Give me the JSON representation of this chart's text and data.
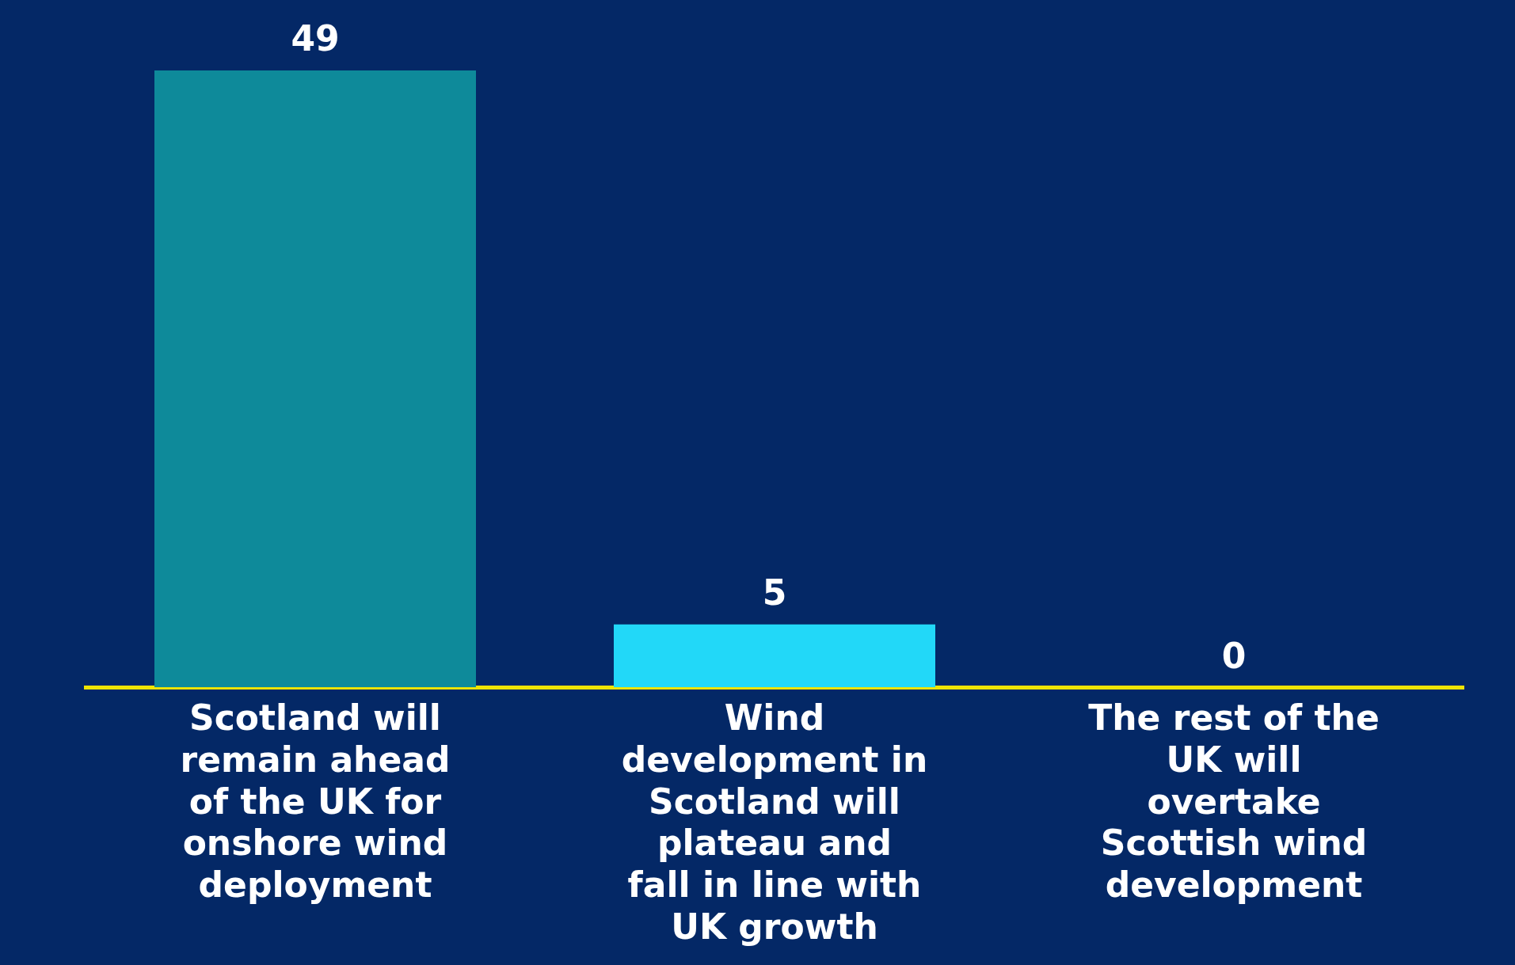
{
  "chart_data": {
    "type": "bar",
    "categories": [
      "Scotland will remain ahead of the UK for onshore wind deployment",
      "Wind development in Scotland will plateau and fall in line with UK growth",
      "The rest of the UK will overtake Scottish wind development"
    ],
    "values": [
      49,
      5,
      0
    ],
    "colors": [
      "#0e8a9a",
      "#22d8f8",
      "#1a6fb0"
    ],
    "data_labels": true,
    "legend": false
  }
}
